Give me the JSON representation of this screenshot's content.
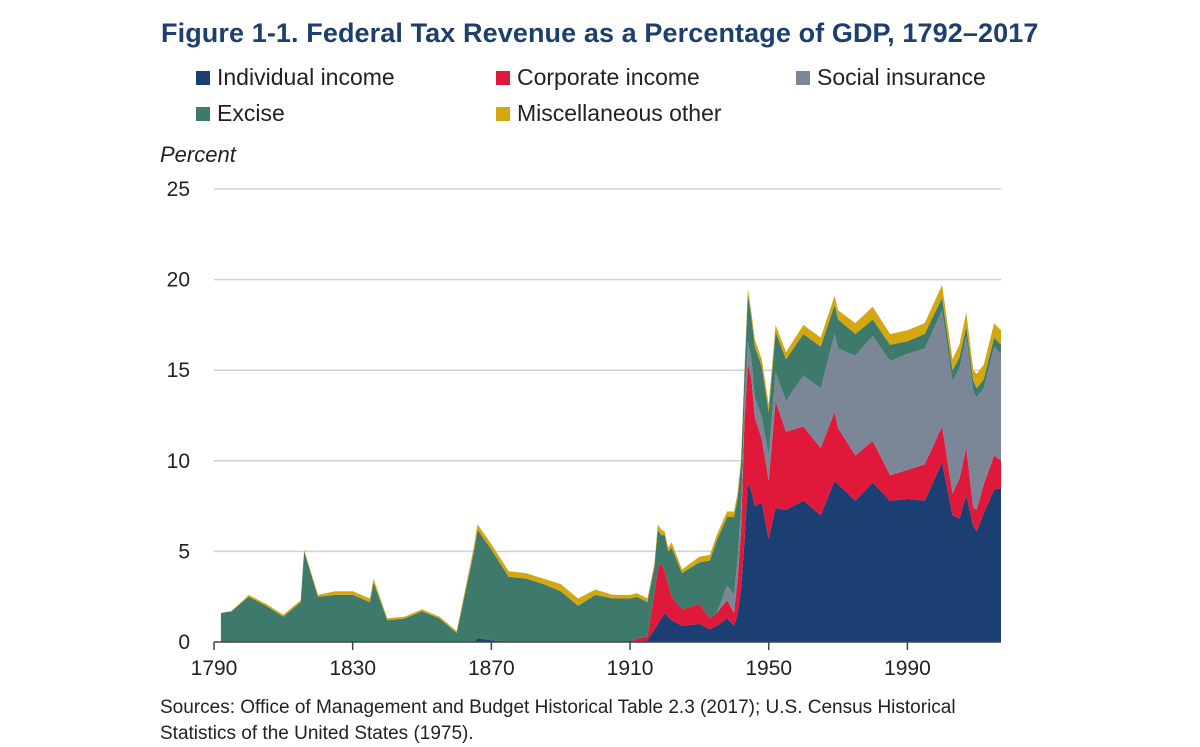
{
  "chart_data": {
    "type": "area",
    "stacked": true,
    "title": "Figure 1-1. Federal Tax Revenue as a Percentage of GDP, 1792–2017",
    "ylabel": "Percent",
    "xlabel": "",
    "xlim": [
      1790,
      2017
    ],
    "ylim": [
      0,
      25
    ],
    "x_ticks": [
      1790,
      1830,
      1870,
      1910,
      1950,
      1990
    ],
    "y_ticks": [
      0,
      5,
      10,
      15,
      20,
      25
    ],
    "grid": "horizontal",
    "legend_placement": "top",
    "x": [
      1792,
      1795,
      1800,
      1805,
      1810,
      1815,
      1816,
      1820,
      1825,
      1830,
      1835,
      1836,
      1840,
      1845,
      1850,
      1855,
      1860,
      1865,
      1866,
      1870,
      1875,
      1880,
      1885,
      1890,
      1895,
      1900,
      1905,
      1910,
      1912,
      1915,
      1917,
      1918,
      1919,
      1920,
      1921,
      1922,
      1925,
      1930,
      1933,
      1935,
      1938,
      1940,
      1941,
      1942,
      1943,
      1944,
      1945,
      1946,
      1948,
      1950,
      1952,
      1955,
      1960,
      1965,
      1969,
      1970,
      1975,
      1980,
      1985,
      1990,
      1995,
      2000,
      2003,
      2005,
      2007,
      2009,
      2010,
      2012,
      2015,
      2017
    ],
    "series": [
      {
        "name": "Individual income",
        "color": "#1b3f73",
        "values": [
          0,
          0,
          0,
          0,
          0,
          0,
          0,
          0,
          0,
          0,
          0,
          0,
          0,
          0,
          0,
          0,
          0,
          0,
          0.2,
          0.1,
          0,
          0,
          0,
          0,
          0,
          0,
          0,
          0,
          0,
          0.1,
          0.7,
          1.0,
          1.3,
          1.6,
          1.4,
          1.2,
          0.9,
          1.0,
          0.7,
          0.9,
          1.3,
          0.9,
          1.5,
          2.9,
          5.5,
          8.8,
          8.3,
          7.5,
          7.7,
          5.7,
          7.4,
          7.3,
          7.8,
          7.0,
          8.9,
          8.7,
          7.8,
          8.8,
          7.8,
          7.9,
          7.8,
          9.9,
          7.0,
          6.8,
          8.1,
          6.4,
          6.1,
          7.1,
          8.4,
          8.5
        ]
      },
      {
        "name": "Corporate income",
        "color": "#e0193a",
        "values": [
          0,
          0,
          0,
          0,
          0,
          0,
          0,
          0,
          0,
          0,
          0,
          0,
          0,
          0,
          0,
          0,
          0,
          0,
          0,
          0,
          0,
          0,
          0,
          0,
          0,
          0,
          0,
          0,
          0.2,
          0.2,
          2.0,
          3.0,
          3.1,
          2.3,
          1.8,
          1.3,
          0.9,
          1.1,
          0.6,
          0.7,
          1.0,
          0.7,
          1.9,
          3.2,
          6.6,
          6.6,
          6.2,
          4.9,
          3.5,
          3.2,
          5.9,
          4.3,
          4.1,
          3.7,
          3.8,
          3.1,
          2.5,
          2.3,
          1.4,
          1.6,
          2.0,
          2.0,
          1.2,
          2.2,
          2.6,
          1.0,
          1.2,
          1.6,
          1.9,
          1.5
        ]
      },
      {
        "name": "Social insurance",
        "color": "#7b8797",
        "values": [
          0,
          0,
          0,
          0,
          0,
          0,
          0,
          0,
          0,
          0,
          0,
          0,
          0,
          0,
          0,
          0,
          0,
          0,
          0,
          0,
          0,
          0,
          0,
          0,
          0,
          0,
          0,
          0,
          0,
          0,
          0,
          0,
          0,
          0,
          0,
          0,
          0,
          0,
          0,
          0,
          0.8,
          1.0,
          1.1,
          1.1,
          1.1,
          1.2,
          1.1,
          1.1,
          1.2,
          1.4,
          1.6,
          1.7,
          2.8,
          3.3,
          4.3,
          4.4,
          5.5,
          5.8,
          6.3,
          6.4,
          6.4,
          6.4,
          6.2,
          6.1,
          6.2,
          6.4,
          6.2,
          5.3,
          6.0,
          5.9
        ]
      },
      {
        "name": "Excise",
        "color": "#3d7a6b",
        "values": [
          1.6,
          1.7,
          2.5,
          2.0,
          1.4,
          2.2,
          5.0,
          2.5,
          2.6,
          2.6,
          2.2,
          3.3,
          1.2,
          1.3,
          1.7,
          1.3,
          0.5,
          5.0,
          6.0,
          5.0,
          3.6,
          3.5,
          3.2,
          2.8,
          2.0,
          2.6,
          2.4,
          2.4,
          2.3,
          1.9,
          1.4,
          2.2,
          1.5,
          2.0,
          1.8,
          2.7,
          2.0,
          2.3,
          3.2,
          4.0,
          3.8,
          4.3,
          3.4,
          2.6,
          1.5,
          2.6,
          2.3,
          2.8,
          2.8,
          2.4,
          2.2,
          2.3,
          2.3,
          2.3,
          1.6,
          1.6,
          1.2,
          0.9,
          0.9,
          0.7,
          0.8,
          0.7,
          0.6,
          0.6,
          0.5,
          0.6,
          0.5,
          0.5,
          0.5,
          0.5
        ]
      },
      {
        "name": "Miscellaneous other",
        "color": "#d4a70f",
        "values": [
          0,
          0,
          0.1,
          0.1,
          0.1,
          0.1,
          0.1,
          0.1,
          0.2,
          0.2,
          0.2,
          0.2,
          0.1,
          0.1,
          0.1,
          0.1,
          0.1,
          0.3,
          0.3,
          0.3,
          0.3,
          0.3,
          0.3,
          0.4,
          0.4,
          0.3,
          0.2,
          0.2,
          0.2,
          0.2,
          0.2,
          0.3,
          0.3,
          0.2,
          0.2,
          0.3,
          0.2,
          0.3,
          0.3,
          0.3,
          0.3,
          0.3,
          0.3,
          0.3,
          0.3,
          0.3,
          0.3,
          0.4,
          0.4,
          0.4,
          0.4,
          0.4,
          0.5,
          0.5,
          0.5,
          0.5,
          0.6,
          0.7,
          0.6,
          0.6,
          0.6,
          0.7,
          0.6,
          0.7,
          0.8,
          0.6,
          0.8,
          0.8,
          0.8,
          0.8
        ]
      }
    ]
  },
  "sources_text": "Sources: Office of Management and Budget Historical Table 2.3 (2017); U.S. Census Historical",
  "sources_text_line2": "Statistics of the United States (1975)."
}
